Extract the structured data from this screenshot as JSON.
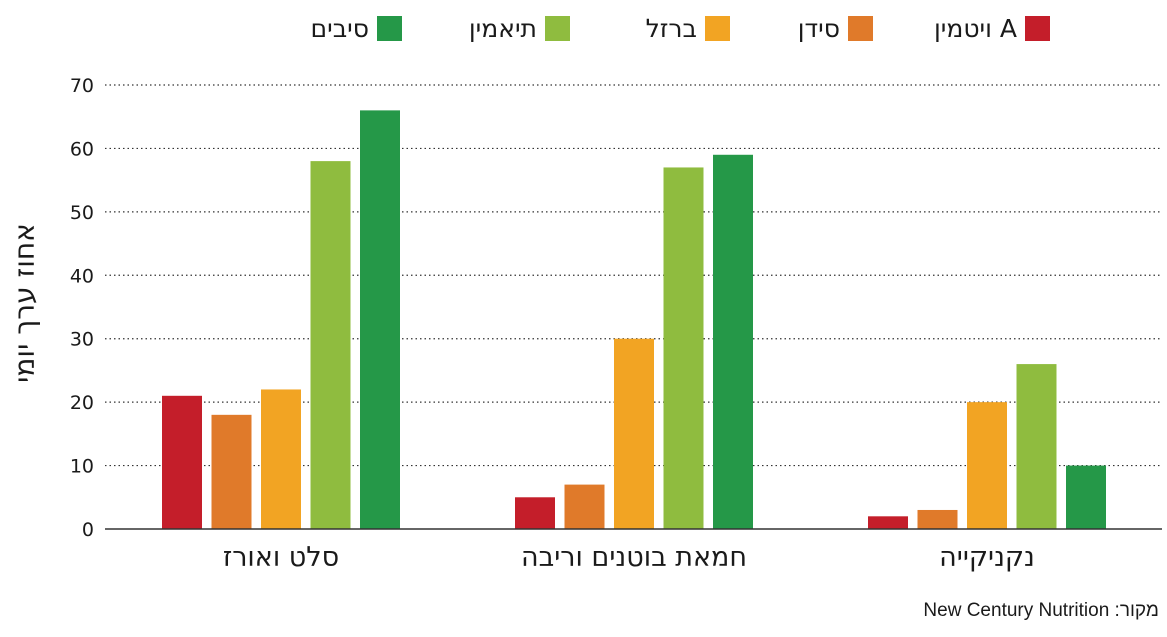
{
  "chart_data": {
    "type": "bar",
    "categories": [
      "סלט ואורז",
      "חמאת בוטנים וריבה",
      "נקניקייה"
    ],
    "series": [
      {
        "name": "ויטמין A",
        "color": "#c41e2a",
        "values": [
          21,
          5,
          2
        ]
      },
      {
        "name": "סידן",
        "color": "#e07a2a",
        "values": [
          18,
          7,
          3
        ]
      },
      {
        "name": "ברזל",
        "color": "#f2a423",
        "values": [
          22,
          30,
          20
        ]
      },
      {
        "name": "תיאמין",
        "color": "#8fbc3f",
        "values": [
          58,
          57,
          26
        ]
      },
      {
        "name": "סיבים",
        "color": "#259848",
        "values": [
          66,
          59,
          10
        ]
      }
    ],
    "ylabel": "אחוז ערך יומי",
    "ylim": [
      0,
      70
    ],
    "yticks": [
      0,
      10,
      20,
      30,
      40,
      50,
      60,
      70
    ],
    "grid": true,
    "legend_position": "top"
  },
  "source": {
    "label": "מקור",
    "text": "New Century Nutrition"
  }
}
